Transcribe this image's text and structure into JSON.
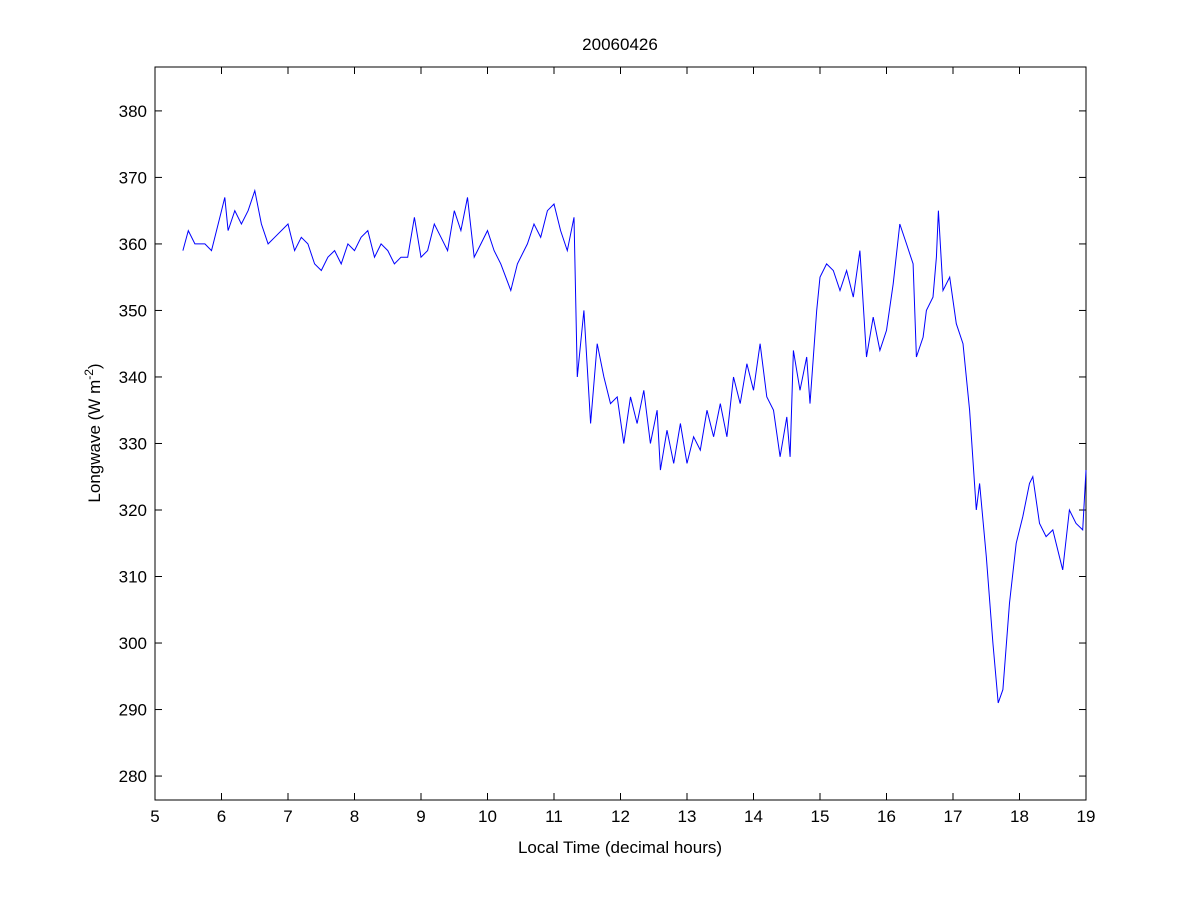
{
  "chart_data": {
    "type": "line",
    "title": "20060426",
    "xlabel": "Local Time (decimal hours)",
    "ylabel": "Longwave (W m",
    "ylabel_sup": "-2",
    "ylabel_close": ")",
    "xlim": [
      5,
      19
    ],
    "ylim": [
      276.4,
      386.6
    ],
    "xticks": [
      5,
      6,
      7,
      8,
      9,
      10,
      11,
      12,
      13,
      14,
      15,
      16,
      17,
      18,
      19
    ],
    "yticks": [
      280,
      290,
      300,
      310,
      320,
      330,
      340,
      350,
      360,
      370,
      380
    ],
    "grid": false,
    "line_color": "#0000ff",
    "series": [
      {
        "name": "Longwave",
        "x": [
          5.42,
          5.5,
          5.6,
          5.75,
          5.85,
          6.0,
          6.05,
          6.1,
          6.2,
          6.3,
          6.4,
          6.5,
          6.6,
          6.7,
          6.8,
          7.0,
          7.1,
          7.2,
          7.3,
          7.4,
          7.5,
          7.6,
          7.7,
          7.8,
          7.9,
          8.0,
          8.1,
          8.2,
          8.3,
          8.4,
          8.5,
          8.6,
          8.7,
          8.8,
          8.9,
          9.0,
          9.1,
          9.2,
          9.3,
          9.4,
          9.5,
          9.6,
          9.7,
          9.8,
          9.9,
          10.0,
          10.1,
          10.2,
          10.35,
          10.45,
          10.6,
          10.7,
          10.8,
          10.9,
          11.0,
          11.1,
          11.2,
          11.3,
          11.35,
          11.45,
          11.55,
          11.65,
          11.75,
          11.85,
          11.95,
          12.05,
          12.15,
          12.25,
          12.35,
          12.45,
          12.55,
          12.6,
          12.7,
          12.8,
          12.9,
          13.0,
          13.1,
          13.2,
          13.3,
          13.4,
          13.5,
          13.6,
          13.7,
          13.8,
          13.9,
          14.0,
          14.1,
          14.2,
          14.3,
          14.4,
          14.5,
          14.55,
          14.6,
          14.7,
          14.8,
          14.85,
          14.95,
          15.0,
          15.1,
          15.2,
          15.3,
          15.4,
          15.5,
          15.6,
          15.7,
          15.8,
          15.9,
          16.0,
          16.1,
          16.2,
          16.3,
          16.4,
          16.45,
          16.55,
          16.6,
          16.7,
          16.75,
          16.78,
          16.85,
          16.95,
          17.05,
          17.15,
          17.25,
          17.35,
          17.4,
          17.5,
          17.6,
          17.68,
          17.75,
          17.85,
          17.95,
          18.05,
          18.15,
          18.2,
          18.3,
          18.4,
          18.5,
          18.6,
          18.65,
          18.75,
          18.85,
          18.95,
          19.0
        ],
        "y": [
          359,
          362,
          360,
          360,
          359,
          365,
          367,
          362,
          365,
          363,
          365,
          368,
          363,
          360,
          361,
          363,
          359,
          361,
          360,
          357,
          356,
          358,
          359,
          357,
          360,
          359,
          361,
          362,
          358,
          360,
          359,
          357,
          358,
          358,
          364,
          358,
          359,
          363,
          361,
          359,
          365,
          362,
          367,
          358,
          360,
          362,
          359,
          357,
          353,
          357,
          360,
          363,
          361,
          365,
          366,
          362,
          359,
          364,
          340,
          350,
          333,
          345,
          340,
          336,
          337,
          330,
          337,
          333,
          338,
          330,
          335,
          326,
          332,
          327,
          333,
          327,
          331,
          329,
          335,
          331,
          336,
          331,
          340,
          336,
          342,
          338,
          345,
          337,
          335,
          328,
          334,
          328,
          344,
          338,
          343,
          336,
          350,
          355,
          357,
          356,
          353,
          356,
          352,
          359,
          343,
          349,
          344,
          347,
          354,
          363,
          360,
          357,
          343,
          346,
          350,
          352,
          358,
          365,
          353,
          355,
          348,
          345,
          335,
          320,
          324,
          313,
          300,
          291,
          293,
          306,
          315,
          319,
          324,
          325,
          318,
          316,
          317,
          313,
          311,
          320,
          318,
          317,
          326
        ]
      }
    ]
  }
}
